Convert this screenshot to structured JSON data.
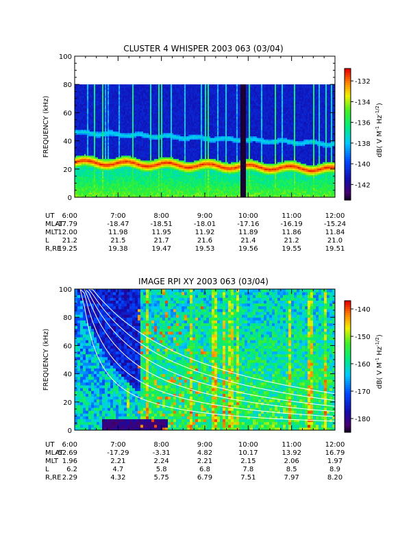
{
  "chart_data": [
    {
      "type": "heatmap",
      "title": "CLUSTER 4 WHISPER 2003 063 (03/04)",
      "ylabel": "FREQUENCY (kHz)",
      "ylim": [
        0,
        100
      ],
      "yticks": [
        "0",
        "20",
        "40",
        "60",
        "80",
        "100"
      ],
      "x_ticks": [
        "6:00",
        "7:00",
        "8:00",
        "9:00",
        "10:00",
        "11:00",
        "12:00"
      ],
      "colorbar": {
        "label": "dB( V M",
        "label_sup1": "-1",
        "label_mid": " Hz",
        "label_sup2": "-1/2",
        "label_end": ")",
        "ticks": [
          "-132",
          "-134",
          "-136",
          "-138",
          "-140",
          "-142"
        ],
        "tick_values": [
          -132,
          -134,
          -136,
          -138,
          -140,
          -142
        ],
        "range": [
          -143.5,
          -130.8
        ]
      },
      "data_ylim": [
        0,
        80
      ],
      "bands": [
        {
          "name": "upper",
          "y_start": 46,
          "y_end": 38,
          "color": "#22b5ff"
        },
        {
          "name": "lower",
          "y_start": 25,
          "y_end": 20,
          "color": "#ff2a10"
        }
      ],
      "ephemeris": [
        {
          "label": "UT",
          "values": [
            "6:00",
            "7:00",
            "8:00",
            "9:00",
            "10:00",
            "11:00",
            "12:00"
          ]
        },
        {
          "label": "MLAT",
          "values": [
            "-17.79",
            "-18.47",
            "-18.51",
            "-18.01",
            "-17.16",
            "-16.19",
            "-15.24"
          ]
        },
        {
          "label": "MLT",
          "values": [
            "12.00",
            "11.98",
            "11.95",
            "11.92",
            "11.89",
            "11.86",
            "11.84"
          ]
        },
        {
          "label": "L",
          "values": [
            "21.2",
            "21.5",
            "21.7",
            "21.6",
            "21.4",
            "21.2",
            "21.0"
          ]
        },
        {
          "label": "R,RE",
          "values": [
            "19.25",
            "19.38",
            "19.47",
            "19.53",
            "19.56",
            "19.55",
            "19.51"
          ]
        }
      ]
    },
    {
      "type": "heatmap",
      "title": "IMAGE RPI XY 2003 063 (03/04)",
      "ylabel": "FREQUENCY (kHz)",
      "ylim": [
        0,
        100
      ],
      "yticks": [
        "0",
        "20",
        "40",
        "60",
        "80",
        "100"
      ],
      "x_ticks": [
        "6:00",
        "7:00",
        "8:00",
        "9:00",
        "10:00",
        "11:00",
        "12:00"
      ],
      "colorbar": {
        "label": "dB( V M",
        "label_sup1": "-1",
        "label_mid": " Hz",
        "label_sup2": "-1/2",
        "label_end": ")",
        "ticks": [
          "-140",
          "-150",
          "-160",
          "-170",
          "-180"
        ],
        "tick_values": [
          -140,
          -150,
          -160,
          -170,
          -180
        ],
        "range": [
          -185,
          -137
        ]
      },
      "data_ylim": [
        0,
        100
      ],
      "ephemeris": [
        {
          "label": "UT",
          "values": [
            "6:00",
            "7:00",
            "8:00",
            "9:00",
            "10:00",
            "11:00",
            "12:00"
          ]
        },
        {
          "label": "MLAT",
          "values": [
            "-52.69",
            "-17.29",
            "-3.31",
            "4.82",
            "10.17",
            "13.92",
            "16.79"
          ]
        },
        {
          "label": "MLT",
          "values": [
            "1.96",
            "2.21",
            "2.24",
            "2.21",
            "2.15",
            "2.06",
            "1.97"
          ]
        },
        {
          "label": "L",
          "values": [
            "6.2",
            "4.7",
            "5.8",
            "6.8",
            "7.8",
            "8.5",
            "8.9"
          ]
        },
        {
          "label": "R,RE",
          "values": [
            "2.29",
            "4.32",
            "5.75",
            "6.79",
            "7.51",
            "7.97",
            "8.20"
          ]
        }
      ]
    }
  ]
}
